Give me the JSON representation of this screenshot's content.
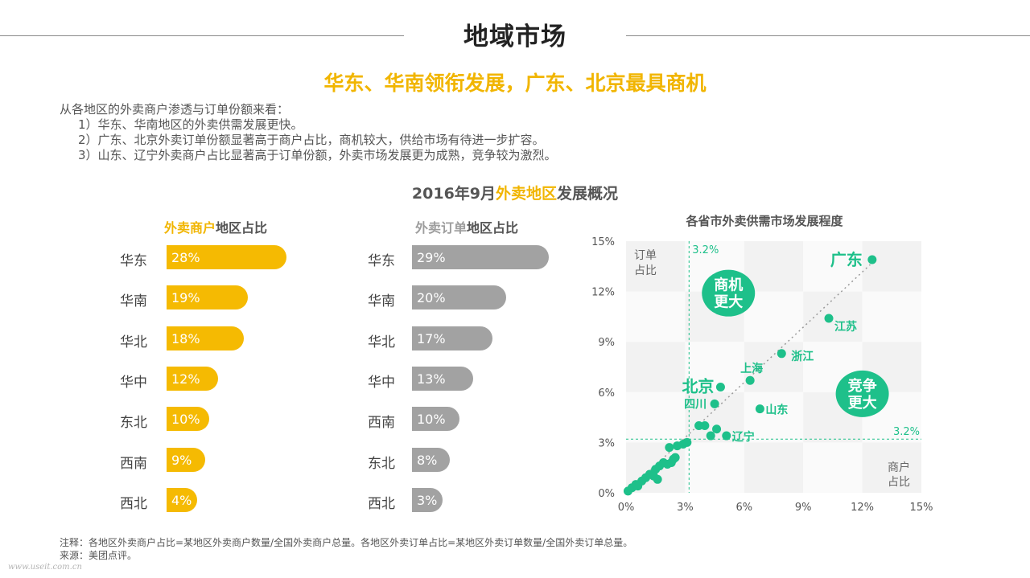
{
  "title": "地域市场",
  "subtitle": "华东、华南领衔发展，广东、北京最具商机",
  "intro": {
    "lead": "从各地区的外卖商户渗透与订单份额来看：",
    "points": [
      "1）华东、华南地区的外卖供需发展更快。",
      "2）广东、北京外卖订单份额显著高于商户占比，商机较大，供给市场有待进一步扩容。",
      "3）山东、辽宁外卖商户占比显著高于订单份额，外卖市场发展更为成熟，竞争较为激烈。"
    ]
  },
  "figure_title": {
    "prefix": "2016年9月",
    "highlight": "外卖地区",
    "suffix": "发展概况"
  },
  "merchant_panel": {
    "title_highlight": "外卖商户",
    "title_rest": "地区占比"
  },
  "order_panel": {
    "title_highlight": "外卖订单",
    "title_rest": "地区占比"
  },
  "scatter_panel": {
    "title": "各省市外卖供需市场发展程度"
  },
  "footer": {
    "note": "注释：各地区外卖商户占比=某地区外卖商户数量/全国外卖商户总量。各地区外卖订单占比=某地区外卖订单数量/全国外卖订单总量。",
    "source": "来源：美团点评。"
  },
  "watermark": "www.useit.com.cn",
  "colors": {
    "yellow": "#f5ba02",
    "grey": "#a2a2a2",
    "green": "#1ec08a"
  },
  "chart_data": [
    {
      "type": "bar",
      "orientation": "horizontal",
      "title": "外卖商户地区占比",
      "categories": [
        "华东",
        "华南",
        "华北",
        "华中",
        "东北",
        "西南",
        "西北"
      ],
      "values": [
        28,
        19,
        18,
        12,
        10,
        9,
        4
      ],
      "value_labels": [
        "28%",
        "19%",
        "18%",
        "12%",
        "10%",
        "9%",
        "4%"
      ],
      "unit": "%"
    },
    {
      "type": "bar",
      "orientation": "horizontal",
      "title": "外卖订单地区占比",
      "categories": [
        "华东",
        "华南",
        "华北",
        "华中",
        "西南",
        "东北",
        "西北"
      ],
      "values": [
        29,
        20,
        17,
        13,
        10,
        8,
        3
      ],
      "value_labels": [
        "29%",
        "20%",
        "17%",
        "13%",
        "10%",
        "8%",
        "3%"
      ],
      "unit": "%"
    },
    {
      "type": "scatter",
      "title": "各省市外卖供需市场发展程度",
      "xlabel": "商户占比",
      "ylabel": "订单占比",
      "xlim": [
        0,
        15
      ],
      "ylim": [
        0,
        15
      ],
      "xticks": [
        "0%",
        "3%",
        "6%",
        "9%",
        "12%",
        "15%"
      ],
      "yticks": [
        "0%",
        "3%",
        "6%",
        "9%",
        "12%",
        "15%"
      ],
      "reference_lines": {
        "x": 3.2,
        "y": 3.2,
        "x_label": "3.2%",
        "y_label": "3.2%"
      },
      "diagonal": true,
      "zones": [
        {
          "label": [
            "商机",
            "更大"
          ],
          "x": 5.2,
          "y": 11.9
        },
        {
          "label": [
            "竞争",
            "更大"
          ],
          "x": 12.0,
          "y": 5.9
        }
      ],
      "labeled_points": [
        {
          "name": "广东",
          "x": 12.5,
          "y": 13.9,
          "emphasis": true
        },
        {
          "name": "江苏",
          "x": 10.3,
          "y": 10.4
        },
        {
          "name": "浙江",
          "x": 7.9,
          "y": 8.3
        },
        {
          "name": "北京",
          "x": 4.8,
          "y": 6.3,
          "emphasis": true
        },
        {
          "name": "上海",
          "x": 6.3,
          "y": 6.7
        },
        {
          "name": "四川",
          "x": 4.5,
          "y": 5.3
        },
        {
          "name": "山东",
          "x": 6.8,
          "y": 5.0
        },
        {
          "name": "辽宁",
          "x": 5.1,
          "y": 3.4
        }
      ],
      "unlabeled_points": [
        [
          0.1,
          0.1
        ],
        [
          0.3,
          0.3
        ],
        [
          0.5,
          0.5
        ],
        [
          0.6,
          0.4
        ],
        [
          0.8,
          0.7
        ],
        [
          1.0,
          0.9
        ],
        [
          1.2,
          1.1
        ],
        [
          1.4,
          1.0
        ],
        [
          1.5,
          1.4
        ],
        [
          1.6,
          0.8
        ],
        [
          1.7,
          1.6
        ],
        [
          1.9,
          1.8
        ],
        [
          2.1,
          1.7
        ],
        [
          2.3,
          1.8
        ],
        [
          2.4,
          2.0
        ],
        [
          2.5,
          2.1
        ],
        [
          2.2,
          2.7
        ],
        [
          2.6,
          2.8
        ],
        [
          2.9,
          2.9
        ],
        [
          3.1,
          3.0
        ],
        [
          3.7,
          4.0
        ],
        [
          4.0,
          4.0
        ],
        [
          4.6,
          3.8
        ],
        [
          4.3,
          3.4
        ]
      ]
    }
  ]
}
